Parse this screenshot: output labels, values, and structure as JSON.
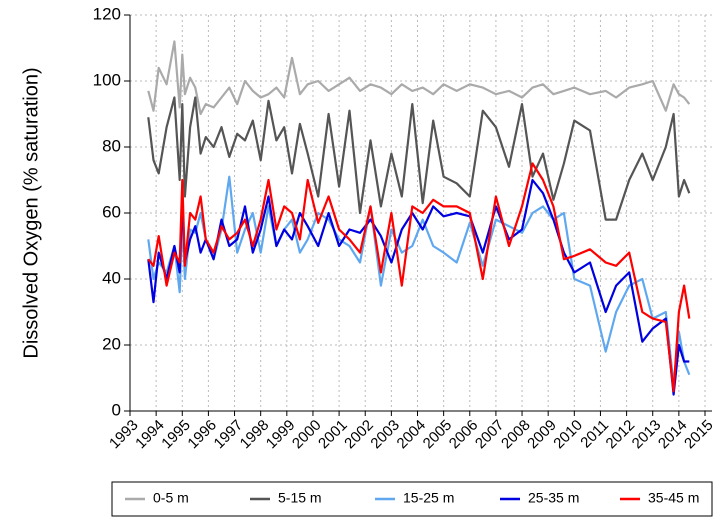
{
  "chart_data": {
    "type": "line",
    "ylabel": "Dissolved Oxygen (% saturation)",
    "xlim": [
      1993,
      2015
    ],
    "xticks": [
      1993,
      1994,
      1995,
      1996,
      1997,
      1998,
      1999,
      2000,
      2001,
      2002,
      2003,
      2004,
      2005,
      2006,
      2007,
      2008,
      2009,
      2010,
      2011,
      2012,
      2013,
      2014,
      2015
    ],
    "ylim": [
      0,
      120
    ],
    "yticks": [
      0,
      20,
      40,
      60,
      80,
      100,
      120
    ],
    "grid": true,
    "legend": "bottom",
    "x": [
      1993.7,
      1993.9,
      1994.1,
      1994.4,
      1994.7,
      1994.9,
      1995.0,
      1995.1,
      1995.3,
      1995.5,
      1995.7,
      1995.9,
      1996.2,
      1996.5,
      1996.8,
      1997.1,
      1997.4,
      1997.7,
      1998.0,
      1998.3,
      1998.6,
      1998.9,
      1999.2,
      1999.5,
      1999.8,
      2000.2,
      2000.6,
      2001.0,
      2001.4,
      2001.8,
      2002.2,
      2002.6,
      2003.0,
      2003.4,
      2003.8,
      2004.2,
      2004.6,
      2005.0,
      2005.5,
      2006.0,
      2006.5,
      2007.0,
      2007.5,
      2008.0,
      2008.4,
      2008.8,
      2009.2,
      2009.6,
      2010.0,
      2010.6,
      2011.2,
      2011.6,
      2012.1,
      2012.6,
      2013.0,
      2013.5,
      2013.8,
      2014.0,
      2014.2,
      2014.4
    ],
    "series": [
      {
        "name": "0-5 m",
        "color": "#aaaaaa",
        "values": [
          97,
          91,
          104,
          99,
          112,
          92,
          108,
          96,
          101,
          98,
          90,
          93,
          92,
          95,
          98,
          93,
          100,
          97,
          95,
          96,
          98,
          95,
          107,
          96,
          99,
          100,
          97,
          99,
          101,
          97,
          99,
          98,
          96,
          99,
          97,
          98,
          96,
          99,
          97,
          99,
          98,
          96,
          97,
          95,
          98,
          99,
          96,
          97,
          98,
          96,
          97,
          95,
          98,
          99,
          100,
          91,
          99,
          96,
          95,
          93
        ]
      },
      {
        "name": "5-15 m",
        "color": "#555555",
        "values": [
          89,
          76,
          72,
          86,
          95,
          70,
          93,
          65,
          86,
          95,
          78,
          83,
          80,
          86,
          77,
          84,
          82,
          88,
          76,
          94,
          82,
          86,
          72,
          87,
          78,
          65,
          90,
          68,
          91,
          60,
          82,
          62,
          78,
          65,
          93,
          63,
          88,
          71,
          69,
          65,
          91,
          86,
          74,
          93,
          71,
          78,
          64,
          75,
          88,
          85,
          58,
          58,
          70,
          78,
          70,
          80,
          90,
          65,
          70,
          66
        ]
      },
      {
        "name": "15-25 m",
        "color": "#5fa8f0",
        "values": [
          52,
          40,
          45,
          42,
          50,
          36,
          58,
          40,
          55,
          54,
          60,
          52,
          46,
          55,
          71,
          48,
          55,
          60,
          48,
          62,
          50,
          55,
          58,
          48,
          52,
          60,
          58,
          52,
          50,
          45,
          62,
          38,
          55,
          48,
          50,
          58,
          50,
          48,
          45,
          57,
          44,
          58,
          56,
          54,
          60,
          62,
          58,
          60,
          40,
          38,
          18,
          30,
          38,
          40,
          28,
          30,
          8,
          24,
          15,
          11
        ]
      },
      {
        "name": "25-35 m",
        "color": "#0000e0",
        "values": [
          46,
          33,
          48,
          40,
          50,
          42,
          64,
          45,
          52,
          56,
          48,
          52,
          46,
          58,
          50,
          52,
          62,
          48,
          55,
          65,
          50,
          55,
          52,
          60,
          56,
          50,
          60,
          50,
          55,
          54,
          58,
          53,
          45,
          55,
          60,
          55,
          62,
          59,
          60,
          59,
          48,
          62,
          52,
          55,
          70,
          66,
          58,
          48,
          42,
          45,
          30,
          38,
          42,
          21,
          25,
          28,
          5,
          20,
          15,
          15
        ]
      },
      {
        "name": "35-45 m",
        "color": "#ff0000",
        "values": [
          46,
          44,
          53,
          38,
          48,
          45,
          70,
          44,
          60,
          58,
          65,
          52,
          48,
          56,
          52,
          54,
          58,
          50,
          58,
          70,
          55,
          62,
          60,
          52,
          70,
          57,
          65,
          55,
          52,
          48,
          62,
          42,
          60,
          38,
          62,
          60,
          64,
          62,
          62,
          60,
          40,
          65,
          50,
          62,
          75,
          70,
          62,
          46,
          47,
          49,
          45,
          44,
          48,
          30,
          28,
          27,
          6,
          30,
          38,
          28
        ]
      }
    ]
  }
}
